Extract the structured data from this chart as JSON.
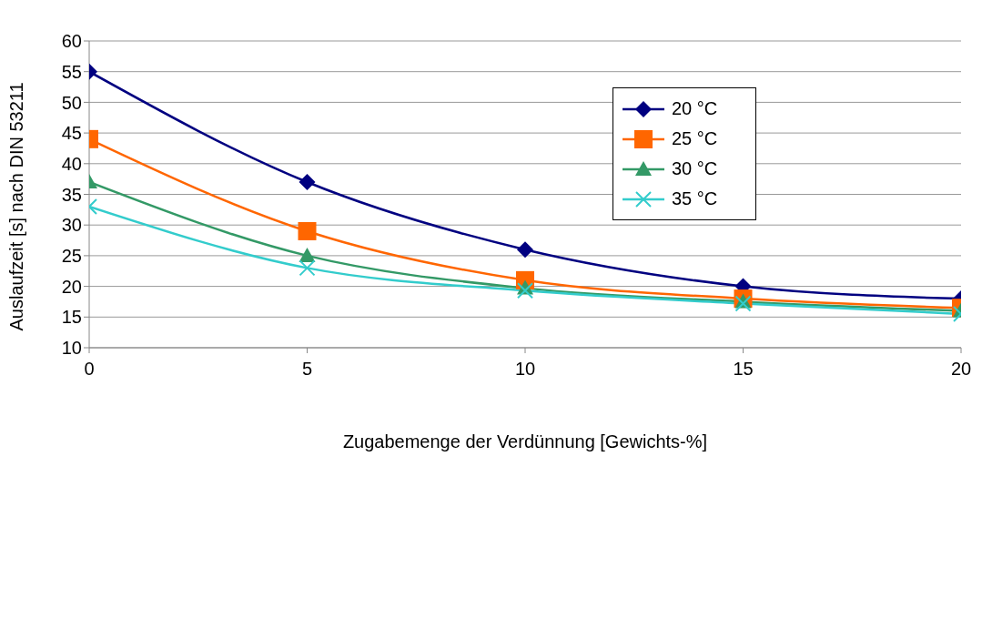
{
  "chart_data": {
    "type": "line",
    "xlabel": "Zugabemenge der Verdünnung [Gewichts-%]",
    "ylabel": "Auslaufzeit [s] nach DIN 53211",
    "x": [
      0,
      5,
      10,
      15,
      20
    ],
    "series": [
      {
        "name": "20 °C",
        "color": "#000080",
        "marker": "diamond",
        "values": [
          55,
          37,
          26,
          20,
          18
        ]
      },
      {
        "name": "25 °C",
        "color": "#ff6600",
        "marker": "square",
        "values": [
          44,
          29,
          21,
          18,
          16.5
        ]
      },
      {
        "name": "30 °C",
        "color": "#339966",
        "marker": "triangle",
        "values": [
          37,
          25,
          19.7,
          17.5,
          16
        ]
      },
      {
        "name": "35 °C",
        "color": "#33cccc",
        "marker": "cross",
        "values": [
          33,
          23,
          19.3,
          17.2,
          15.5
        ]
      }
    ],
    "xlim": [
      0,
      20
    ],
    "xticks": [
      0,
      5,
      10,
      15,
      20
    ],
    "ylim": [
      10,
      60
    ],
    "yticks": [
      10,
      15,
      20,
      25,
      30,
      35,
      40,
      45,
      50,
      55,
      60
    ],
    "grid": "y",
    "legend": "top right",
    "line_style": "solid"
  }
}
